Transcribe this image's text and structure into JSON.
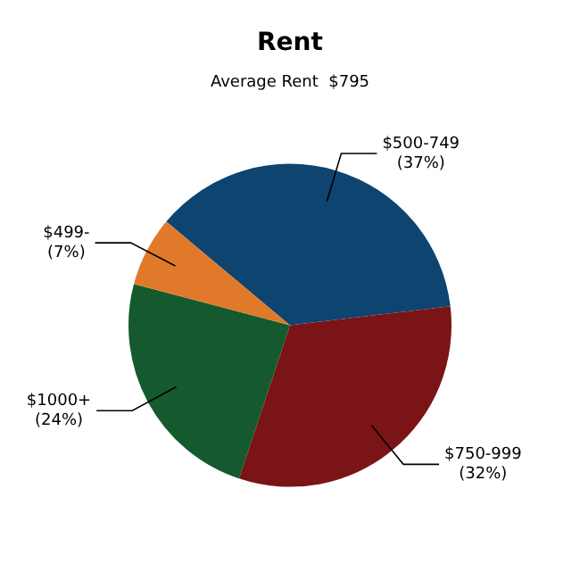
{
  "chart_data": {
    "type": "pie",
    "title": "Rent",
    "subtitle": "Average Rent  $795",
    "categories": [
      "$500-749",
      "$750-999",
      "$1000+",
      "$499-"
    ],
    "values": [
      37,
      32,
      24,
      7
    ],
    "value_labels": [
      "(37%)",
      "(32%)",
      "(24%)",
      "(7%)"
    ],
    "colors": [
      "#0e4470",
      "#7a1416",
      "#145a2e",
      "#e07a2a"
    ],
    "legend": false
  }
}
